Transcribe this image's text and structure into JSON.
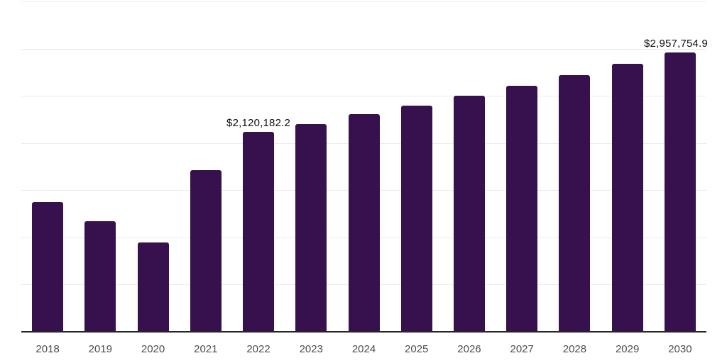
{
  "chart_data": {
    "type": "bar",
    "title": "",
    "xlabel": "",
    "ylabel": "",
    "categories": [
      "2018",
      "2019",
      "2020",
      "2021",
      "2022",
      "2023",
      "2024",
      "2025",
      "2026",
      "2027",
      "2028",
      "2029",
      "2030"
    ],
    "values": [
      1377000,
      1174000,
      949000,
      1715000,
      2120182.2,
      2203000,
      2308000,
      2394000,
      2499000,
      2608000,
      2717000,
      2841000,
      2957754.9
    ],
    "data_labels": [
      {
        "index": 4,
        "text": "$2,120,182.2"
      },
      {
        "index": 12,
        "text": "$2,957,754.9"
      }
    ],
    "ylim": [
      0,
      3500000
    ],
    "gridline_interval": 500000,
    "grid": "horizontal",
    "y_tick_labels": "hidden",
    "legend": "none",
    "colors": {
      "bar": "#36114E",
      "axis_line": "#262626",
      "gridline": "#ebebeb",
      "x_tick_text": "#4d4d4d",
      "data_label_text": "#111111",
      "background": "#ffffff"
    }
  }
}
